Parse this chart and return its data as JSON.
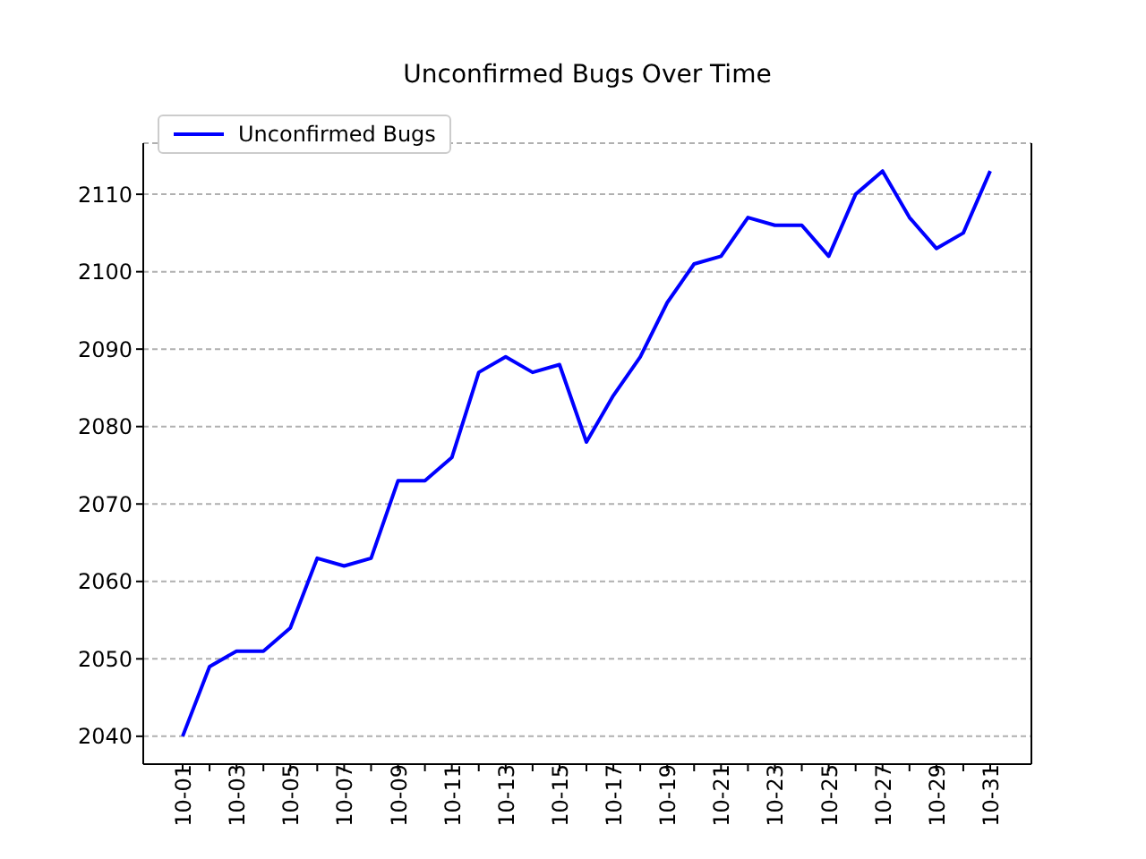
{
  "chart_data": {
    "type": "line",
    "title": "Unconfirmed Bugs Over Time",
    "categories": [
      "10-01",
      null,
      "10-03",
      null,
      "10-05",
      null,
      "10-07",
      null,
      "10-09",
      null,
      "10-11",
      null,
      "10-13",
      null,
      "10-15",
      null,
      "10-17",
      null,
      "10-19",
      null,
      "10-21",
      null,
      "10-23",
      null,
      "10-25",
      null,
      "10-27",
      null,
      "10-29",
      null,
      "10-31"
    ],
    "series": [
      {
        "name": "Unconfirmed Bugs",
        "color": "#0000ff",
        "values": [
          2040,
          2049,
          2051,
          2051,
          2054,
          2063,
          2062,
          2063,
          2073,
          2073,
          2076,
          2087,
          2089,
          2087,
          2088,
          2078,
          2084,
          2089,
          2096,
          2101,
          2102,
          2107,
          2106,
          2106,
          2102,
          2110,
          2113,
          2107,
          2103,
          2105,
          2113
        ]
      }
    ],
    "ylim": [
      2036.4,
      2116.6
    ],
    "yticks": [
      2040,
      2050,
      2060,
      2070,
      2080,
      2090,
      2100,
      2110
    ],
    "grid": "y",
    "legend": "top left",
    "marker": "none",
    "line_style": "solid"
  }
}
